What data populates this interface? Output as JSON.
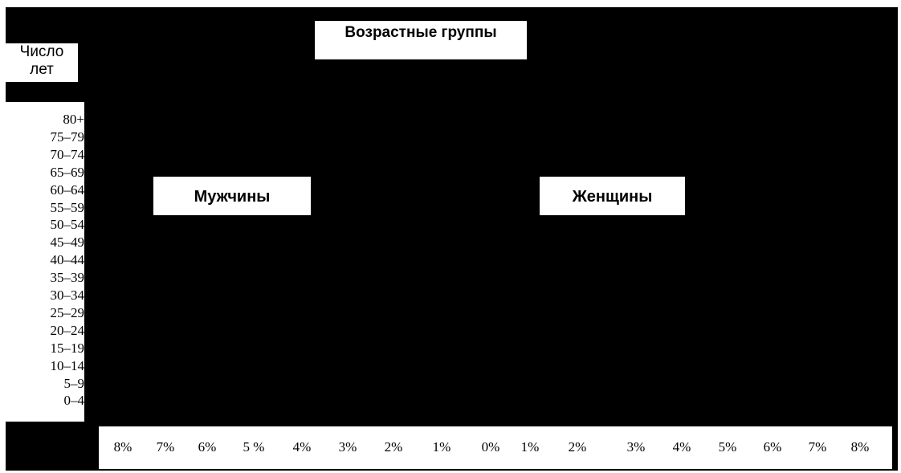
{
  "chart_data": {
    "type": "bar",
    "title": "Возрастные группы",
    "ylabel_lines": [
      "Число",
      "лет"
    ],
    "age_groups": [
      "80+",
      "75–79",
      "70–74",
      "65–69",
      "60–64",
      "55–59",
      "50–54",
      "45–49",
      "40–44",
      "35–39",
      "30–34",
      "25–29",
      "20–24",
      "15–19",
      "10–14",
      "5–9",
      "0–4"
    ],
    "series": [
      {
        "name": "Мужчины"
      },
      {
        "name": "Женщины"
      }
    ],
    "x_tick_labels": [
      "8%",
      "7%",
      "6%",
      "5 %",
      "4%",
      "3%",
      "2%",
      "1%",
      "0%",
      "1%",
      "2%",
      "3%",
      "4%",
      "5%",
      "6%",
      "7%",
      "8%"
    ],
    "background_color": "#000000",
    "label_background_color": "#ffffff"
  }
}
